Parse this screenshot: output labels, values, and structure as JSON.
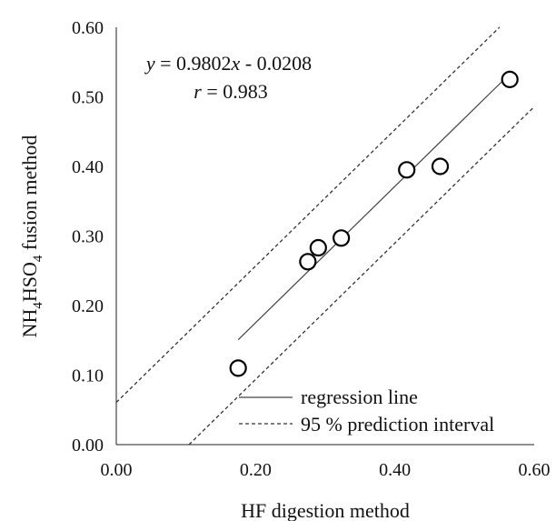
{
  "chart_data": {
    "type": "scatter",
    "xlabel": "HF digestion method",
    "ylabel": {
      "pre": "NH",
      "sub1": "4",
      "mid": "HSO",
      "sub2": "4",
      "post": " fusion method"
    },
    "xlim": [
      0.0,
      0.6
    ],
    "ylim": [
      0.0,
      0.6
    ],
    "xticks": [
      "0.00",
      "0.20",
      "0.40",
      "0.60"
    ],
    "xtick_values": [
      0.0,
      0.2,
      0.4,
      0.6
    ],
    "yticks": [
      "0.00",
      "0.10",
      "0.20",
      "0.30",
      "0.40",
      "0.50",
      "0.60"
    ],
    "ytick_values": [
      0.0,
      0.1,
      0.2,
      0.3,
      0.4,
      0.5,
      0.6
    ],
    "grid": false,
    "points": [
      {
        "x": 0.175,
        "y": 0.11
      },
      {
        "x": 0.275,
        "y": 0.263
      },
      {
        "x": 0.29,
        "y": 0.283
      },
      {
        "x": 0.323,
        "y": 0.297
      },
      {
        "x": 0.417,
        "y": 0.395
      },
      {
        "x": 0.465,
        "y": 0.4
      },
      {
        "x": 0.565,
        "y": 0.525
      }
    ],
    "regression": {
      "slope": 0.9802,
      "intercept": -0.0208,
      "x_range": [
        0.175,
        0.565
      ]
    },
    "prediction_interval": {
      "offset": 0.0815
    },
    "annotation": {
      "equation": {
        "y_var": "y",
        "eq_part": " = 0.9802",
        "x_var": "x",
        "tail": " - 0.0208"
      },
      "r": {
        "r_var": "r",
        "value": " = 0.983"
      }
    },
    "legend": {
      "placement": "bottom-right",
      "entries": [
        {
          "label": "regression line",
          "style": "solid"
        },
        {
          "label": "95 % prediction  interval",
          "style": "dashed"
        }
      ]
    }
  }
}
